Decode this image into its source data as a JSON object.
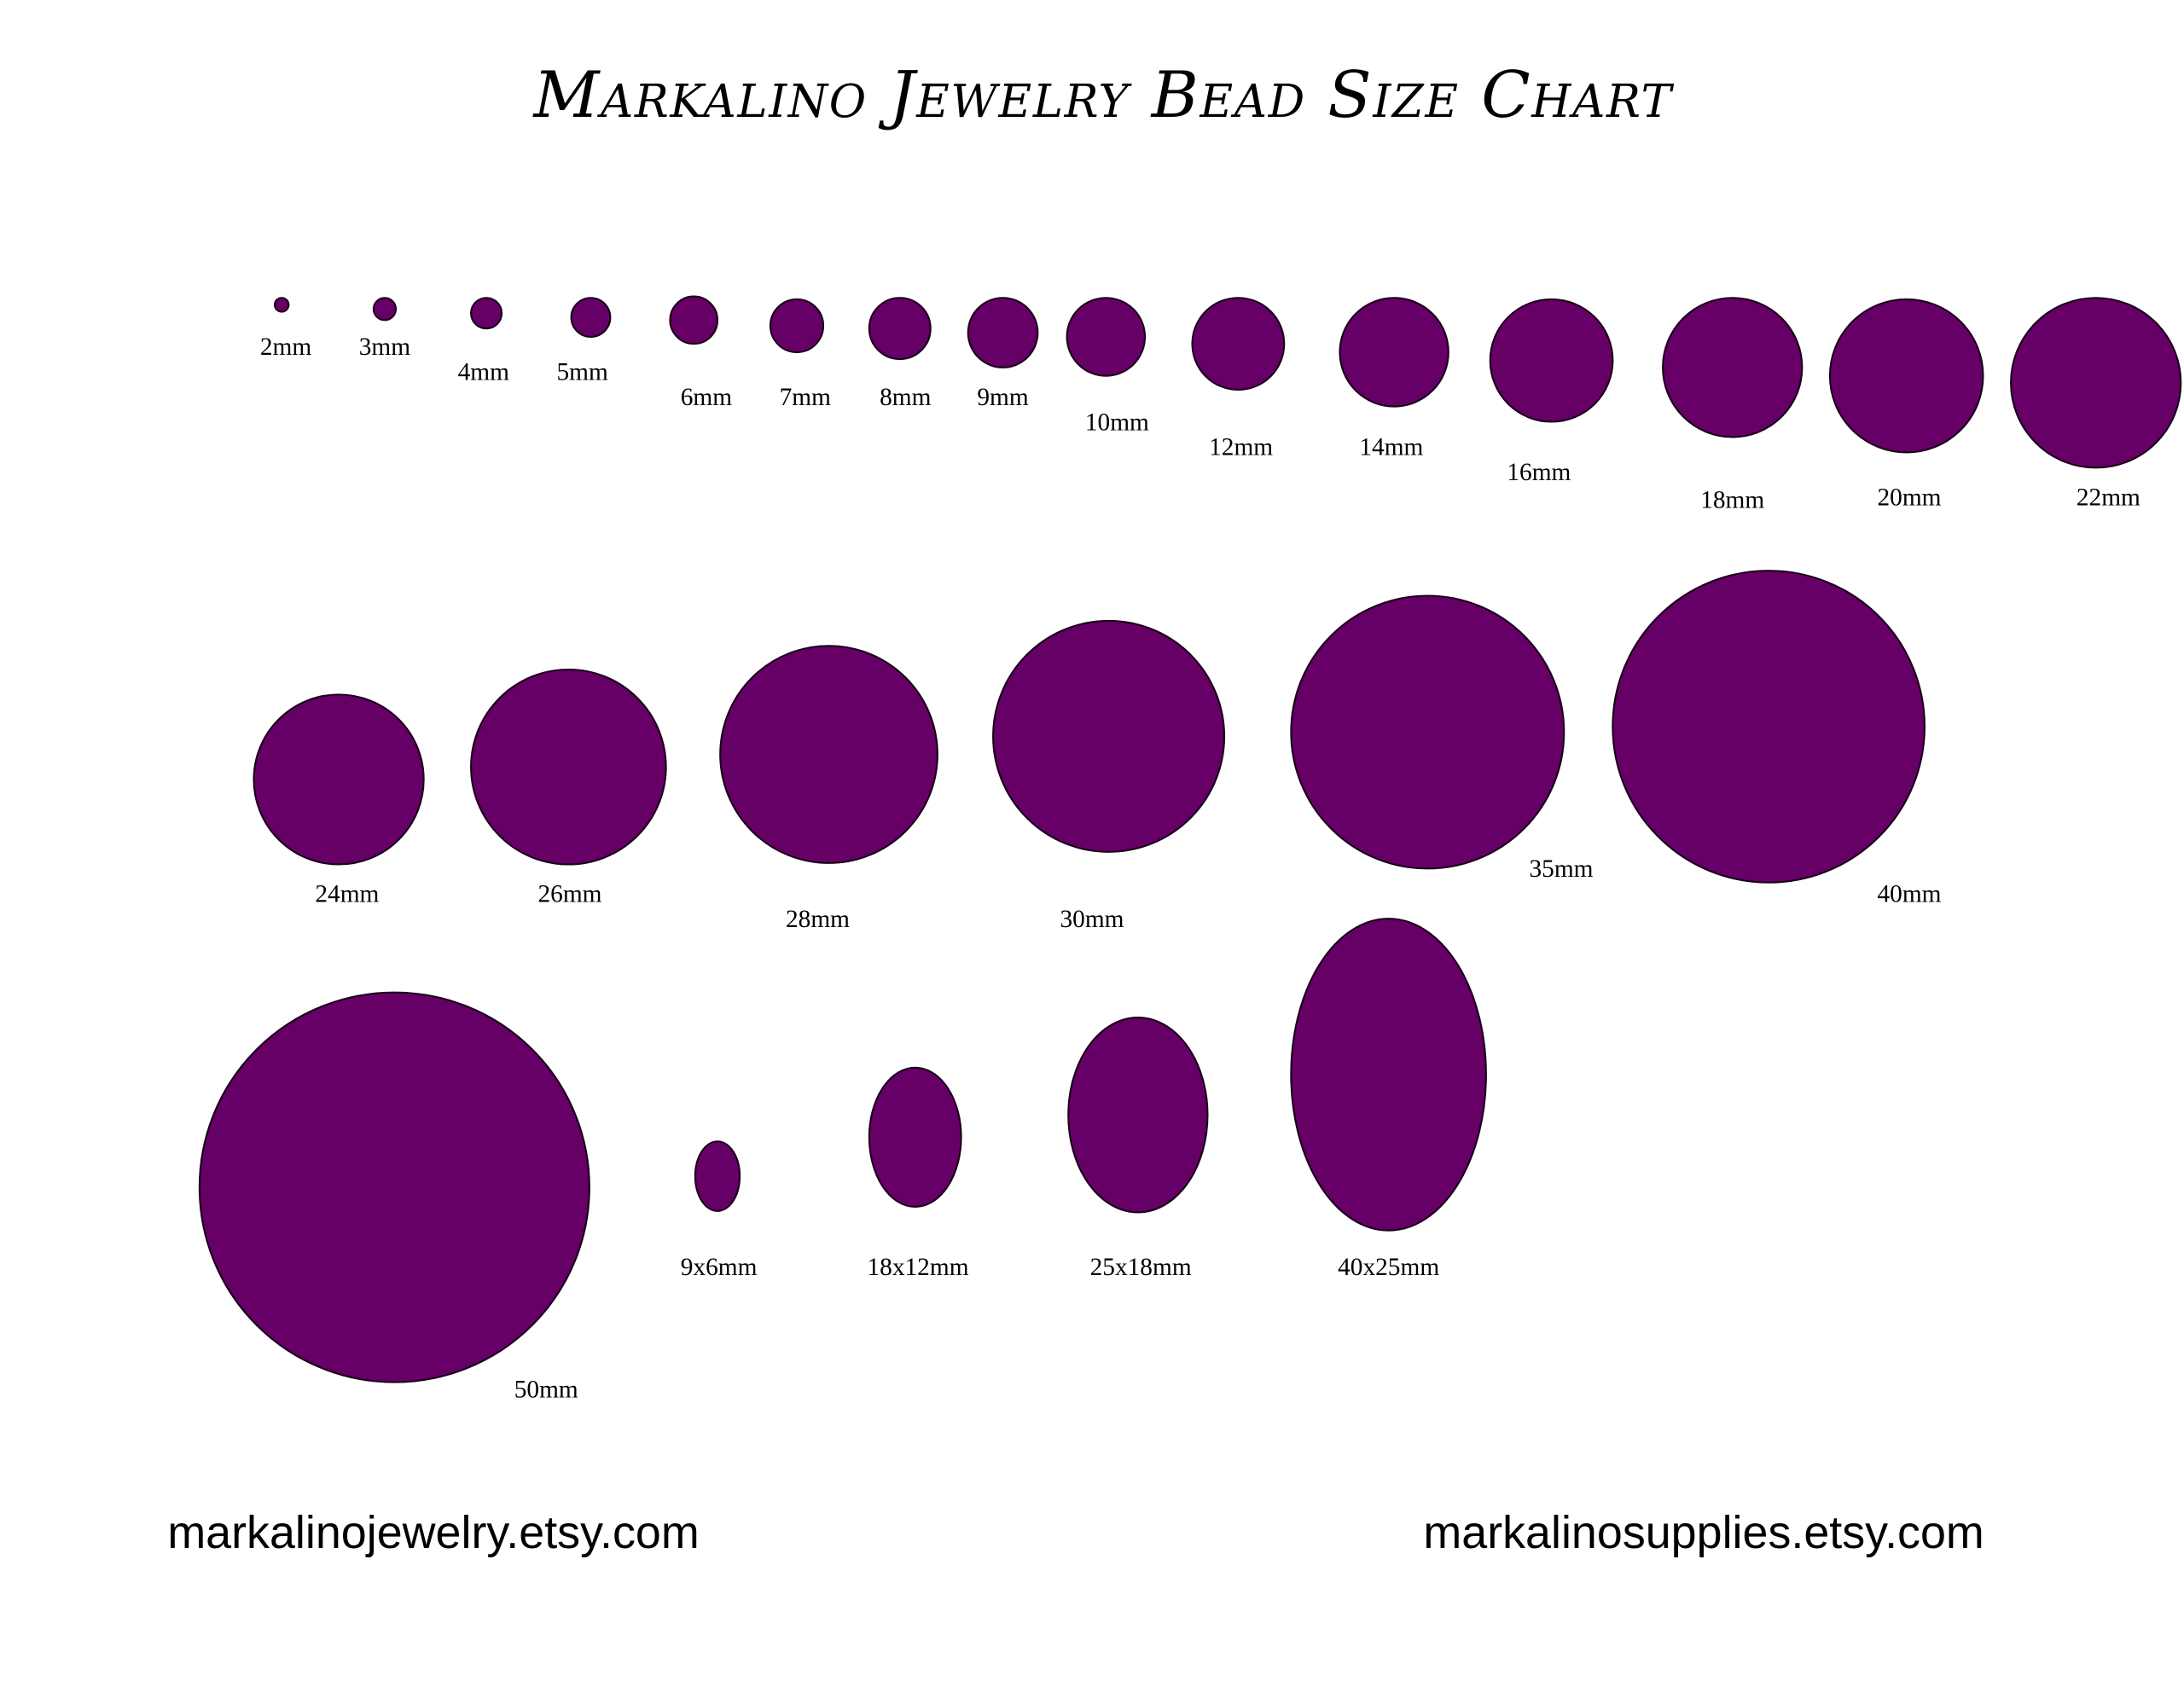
{
  "title": "Markalino Jewelry Bead Size Chart",
  "bead_color": "#660066",
  "outline_color": "#1a001a",
  "beads": [
    {
      "label": "2mm",
      "shape": "round",
      "mm": [
        2,
        2
      ]
    },
    {
      "label": "3mm",
      "shape": "round",
      "mm": [
        3,
        3
      ]
    },
    {
      "label": "4mm",
      "shape": "round",
      "mm": [
        4,
        4
      ]
    },
    {
      "label": "5mm",
      "shape": "round",
      "mm": [
        5,
        5
      ]
    },
    {
      "label": "6mm",
      "shape": "round",
      "mm": [
        6,
        6
      ]
    },
    {
      "label": "7mm",
      "shape": "round",
      "mm": [
        7,
        7
      ]
    },
    {
      "label": "8mm",
      "shape": "round",
      "mm": [
        8,
        8
      ]
    },
    {
      "label": "9mm",
      "shape": "round",
      "mm": [
        9,
        9
      ]
    },
    {
      "label": "10mm",
      "shape": "round",
      "mm": [
        10,
        10
      ]
    },
    {
      "label": "12mm",
      "shape": "round",
      "mm": [
        12,
        12
      ]
    },
    {
      "label": "14mm",
      "shape": "round",
      "mm": [
        14,
        14
      ]
    },
    {
      "label": "16mm",
      "shape": "round",
      "mm": [
        16,
        16
      ]
    },
    {
      "label": "18mm",
      "shape": "round",
      "mm": [
        18,
        18
      ]
    },
    {
      "label": "20mm",
      "shape": "round",
      "mm": [
        20,
        20
      ]
    },
    {
      "label": "22mm",
      "shape": "round",
      "mm": [
        22,
        22
      ]
    },
    {
      "label": "24mm",
      "shape": "round",
      "mm": [
        24,
        24
      ]
    },
    {
      "label": "26mm",
      "shape": "round",
      "mm": [
        26,
        26
      ]
    },
    {
      "label": "28mm",
      "shape": "round",
      "mm": [
        28,
        28
      ]
    },
    {
      "label": "30mm",
      "shape": "round",
      "mm": [
        30,
        30
      ]
    },
    {
      "label": "35mm",
      "shape": "round",
      "mm": [
        35,
        35
      ]
    },
    {
      "label": "40mm",
      "shape": "round",
      "mm": [
        40,
        40
      ]
    },
    {
      "label": "50mm",
      "shape": "round",
      "mm": [
        50,
        50
      ]
    },
    {
      "label": "9x6mm",
      "shape": "oval",
      "mm": [
        6,
        9
      ]
    },
    {
      "label": "18x12mm",
      "shape": "oval",
      "mm": [
        12,
        18
      ]
    },
    {
      "label": "25x18mm",
      "shape": "oval",
      "mm": [
        18,
        25
      ]
    },
    {
      "label": "40x25mm",
      "shape": "oval",
      "mm": [
        25,
        40
      ]
    }
  ],
  "footer": {
    "left": "markalinojewelry.etsy.com",
    "right": "markalinosupplies.etsy.com"
  }
}
